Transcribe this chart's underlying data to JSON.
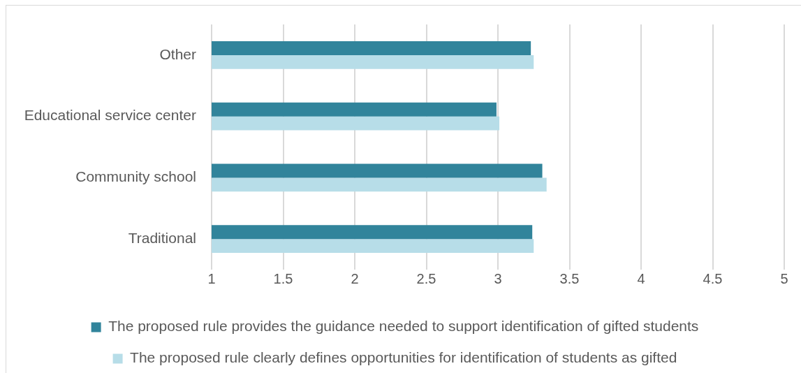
{
  "chart_data": {
    "type": "bar",
    "orientation": "horizontal",
    "categories": [
      "Other",
      "Educational service center",
      "Community school",
      "Traditional"
    ],
    "series": [
      {
        "name": "The proposed rule provides the guidance needed to support identification of gifted students",
        "color": "#31849b",
        "values": [
          3.23,
          2.99,
          3.31,
          3.24
        ]
      },
      {
        "name": "The proposed rule clearly defines opportunities for identification of students as gifted",
        "color": "#b7dde8",
        "values": [
          3.25,
          3.01,
          3.34,
          3.25
        ]
      }
    ],
    "xlim": [
      1,
      5
    ],
    "xticks": [
      1,
      1.5,
      2,
      2.5,
      3,
      3.5,
      4,
      4.5,
      5
    ],
    "grid": "x",
    "legend": "bottom"
  }
}
